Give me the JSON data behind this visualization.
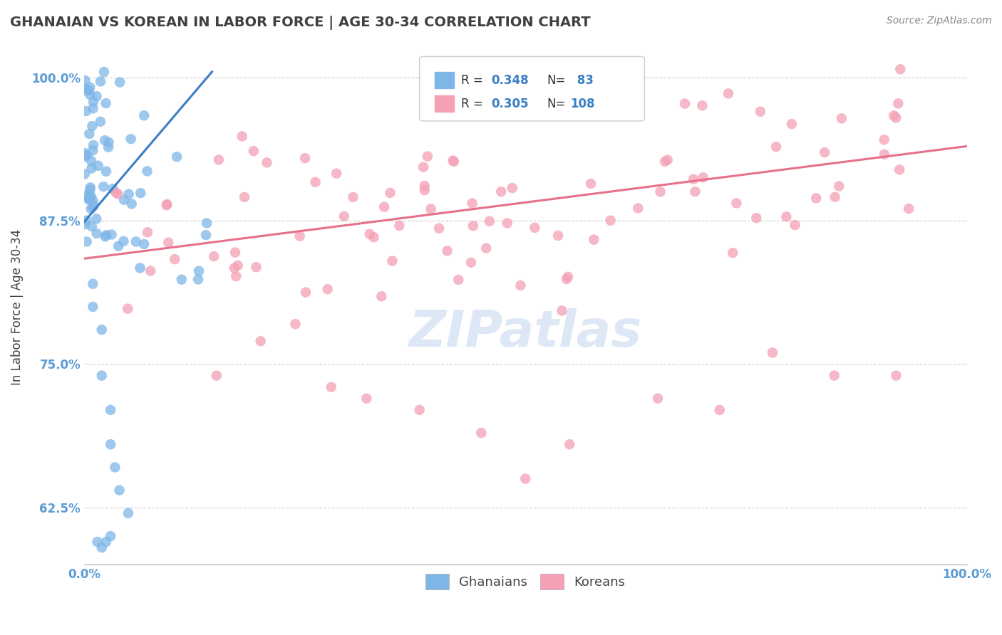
{
  "title": "GHANAIAN VS KOREAN IN LABOR FORCE | AGE 30-34 CORRELATION CHART",
  "source": "Source: ZipAtlas.com",
  "ylabel": "In Labor Force | Age 30-34",
  "xlim": [
    0.0,
    1.0
  ],
  "ylim": [
    0.575,
    1.025
  ],
  "yticks": [
    0.625,
    0.75,
    0.875,
    1.0
  ],
  "ytick_labels": [
    "62.5%",
    "75.0%",
    "87.5%",
    "100.0%"
  ],
  "ghanaian_R": 0.348,
  "ghanaian_N": 83,
  "korean_R": 0.305,
  "korean_N": 108,
  "ghanaian_color": "#7EB6E8",
  "korean_color": "#F4A0B5",
  "ghanaian_line_color": "#3A7EC6",
  "korean_line_color": "#E8708A",
  "watermark_color": "#C8D8F0",
  "background_color": "#FFFFFF",
  "title_color": "#404040",
  "axis_label_color": "#444444",
  "tick_label_color": "#5B9BD5",
  "legend_R_color": "#3A7EC6",
  "title_fontsize": 14,
  "source_fontsize": 10,
  "ylabel_fontsize": 12,
  "tick_fontsize": 12,
  "legend_fontsize": 12,
  "ghanaian_line_x0": 0.0,
  "ghanaian_line_y0": 0.874,
  "ghanaian_line_x1": 0.145,
  "ghanaian_line_y1": 1.005,
  "korean_line_x0": 0.0,
  "korean_line_y0": 0.842,
  "korean_line_x1": 1.0,
  "korean_line_y1": 0.94
}
